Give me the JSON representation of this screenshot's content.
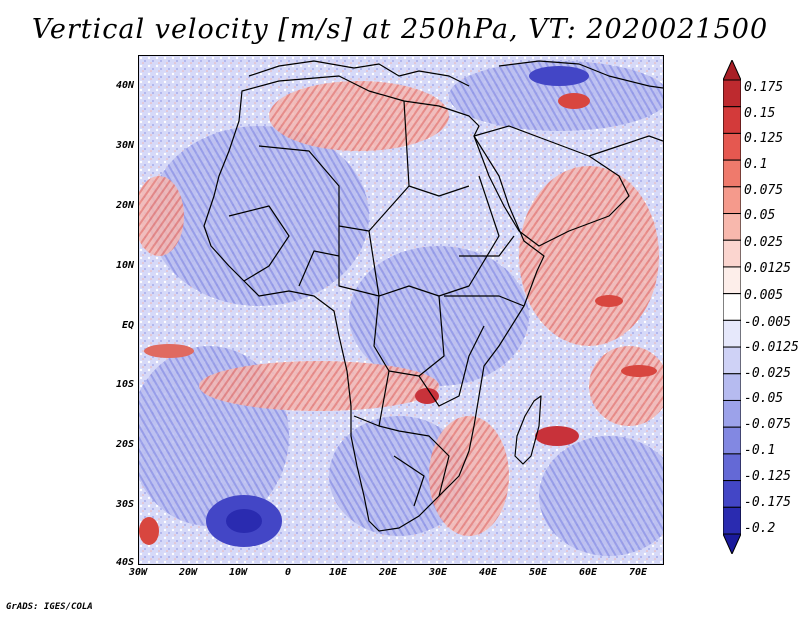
{
  "title": "Vertical velocity [m/s] at 250hPa, VT: 2020021500",
  "credit": "GrADS: IGES/COLA",
  "axes": {
    "y_labels": [
      "40N",
      "30N",
      "20N",
      "10N",
      "EQ",
      "10S",
      "20S",
      "30S",
      "40S"
    ],
    "x_labels": [
      "30W",
      "20W",
      "10W",
      "0",
      "10E",
      "20E",
      "30E",
      "40E",
      "50E",
      "60E",
      "70E"
    ]
  },
  "colorbar": {
    "labels": [
      "0.175",
      "0.15",
      "0.125",
      "0.1",
      "0.075",
      "0.05",
      "0.025",
      "0.0125",
      "0.005",
      "-0.005",
      "-0.0125",
      "-0.025",
      "-0.05",
      "-0.075",
      "-0.1",
      "-0.125",
      "-0.175",
      "-0.2"
    ],
    "colors": [
      "#a81f26",
      "#be2a2f",
      "#d33a3a",
      "#e55850",
      "#ef7a6c",
      "#f59a8c",
      "#f8b8ad",
      "#fbd5cf",
      "#fdeeea",
      "#ffffff",
      "#e6e8fb",
      "#cfd2f6",
      "#b6bbf0",
      "#9ca2ea",
      "#8288e2",
      "#6469d6",
      "#4346c6",
      "#2a2bb0",
      "#1a1a9c"
    ]
  },
  "map_colors": {
    "background": "#cfd3f6",
    "positive": "#f0a09a",
    "strong_positive": "#c8323a",
    "negative": "#9ea3ea",
    "strong_negative": "#3e42c2",
    "land_line": "#000000"
  }
}
